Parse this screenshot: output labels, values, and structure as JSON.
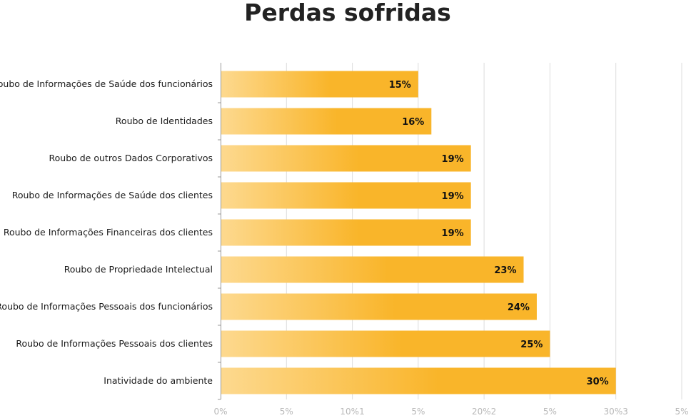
{
  "chart_data": {
    "type": "bar",
    "orientation": "horizontal",
    "title": "Perdas sofridas",
    "categories": [
      "Roubo de Informações de Saúde dos funcionários",
      "Roubo de Identidades",
      "Roubo de outros Dados Corporativos",
      "Roubo de Informações de Saúde dos clientes",
      "Roubo de Informações Financeiras dos clientes",
      "Roubo de Propriedade Intelectual",
      "Roubo de Informações Pessoais dos funcionários",
      "Roubo de Informações Pessoais dos clientes",
      "Inatividade do ambiente"
    ],
    "values": [
      15,
      16,
      19,
      19,
      19,
      23,
      24,
      25,
      30
    ],
    "value_labels": [
      "15%",
      "16%",
      "19%",
      "19%",
      "19%",
      "23%",
      "24%",
      "25%",
      "30%"
    ],
    "xlim": [
      0,
      35
    ],
    "x_ticks": [
      "0%",
      "5%",
      "10%1",
      "5%",
      "20%2",
      "5%",
      "30%3",
      "5%"
    ],
    "grid": true,
    "colors": {
      "bar_start": "#fdd98f",
      "bar_end": "#f9b52a",
      "grid": "#dddddd",
      "axis": "#999999"
    }
  }
}
